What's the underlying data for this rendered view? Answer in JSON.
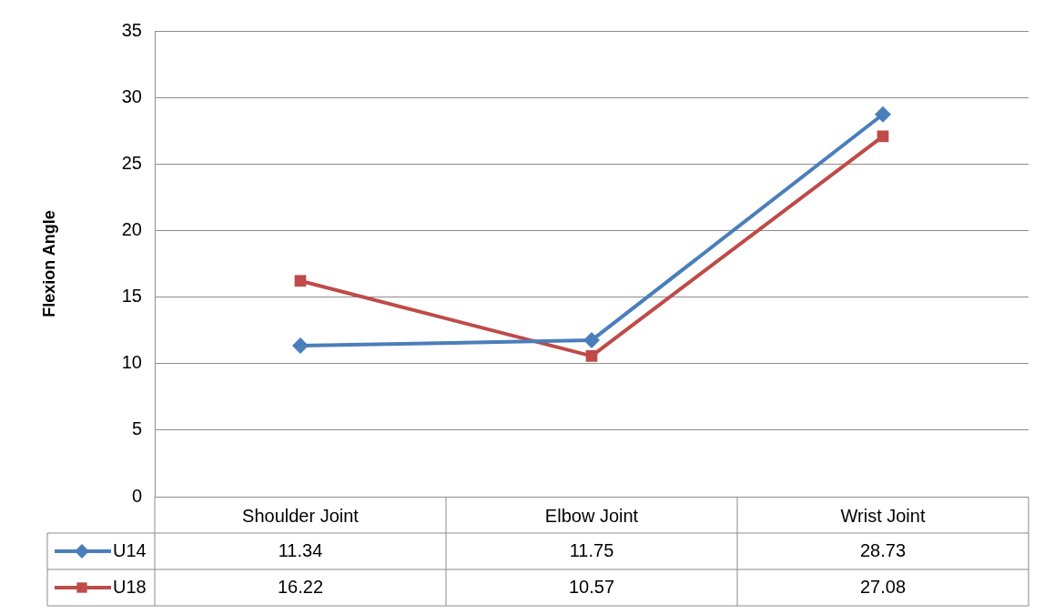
{
  "chart_data": {
    "type": "line",
    "ylabel": "Flexion Angle",
    "categories": [
      "Shoulder Joint",
      "Elbow Joint",
      "Wrist Joint"
    ],
    "series": [
      {
        "name": "U14",
        "color": "#4a7ebb",
        "marker": "diamond",
        "values": [
          11.34,
          11.75,
          28.73
        ]
      },
      {
        "name": "U18",
        "color": "#be4b48",
        "marker": "square",
        "values": [
          16.22,
          10.57,
          27.08
        ]
      }
    ],
    "ylim": [
      0,
      35
    ],
    "yticks": [
      0,
      5,
      10,
      15,
      20,
      25,
      30,
      35
    ],
    "grid": "y",
    "legend": "bottom",
    "data_labels": true
  }
}
